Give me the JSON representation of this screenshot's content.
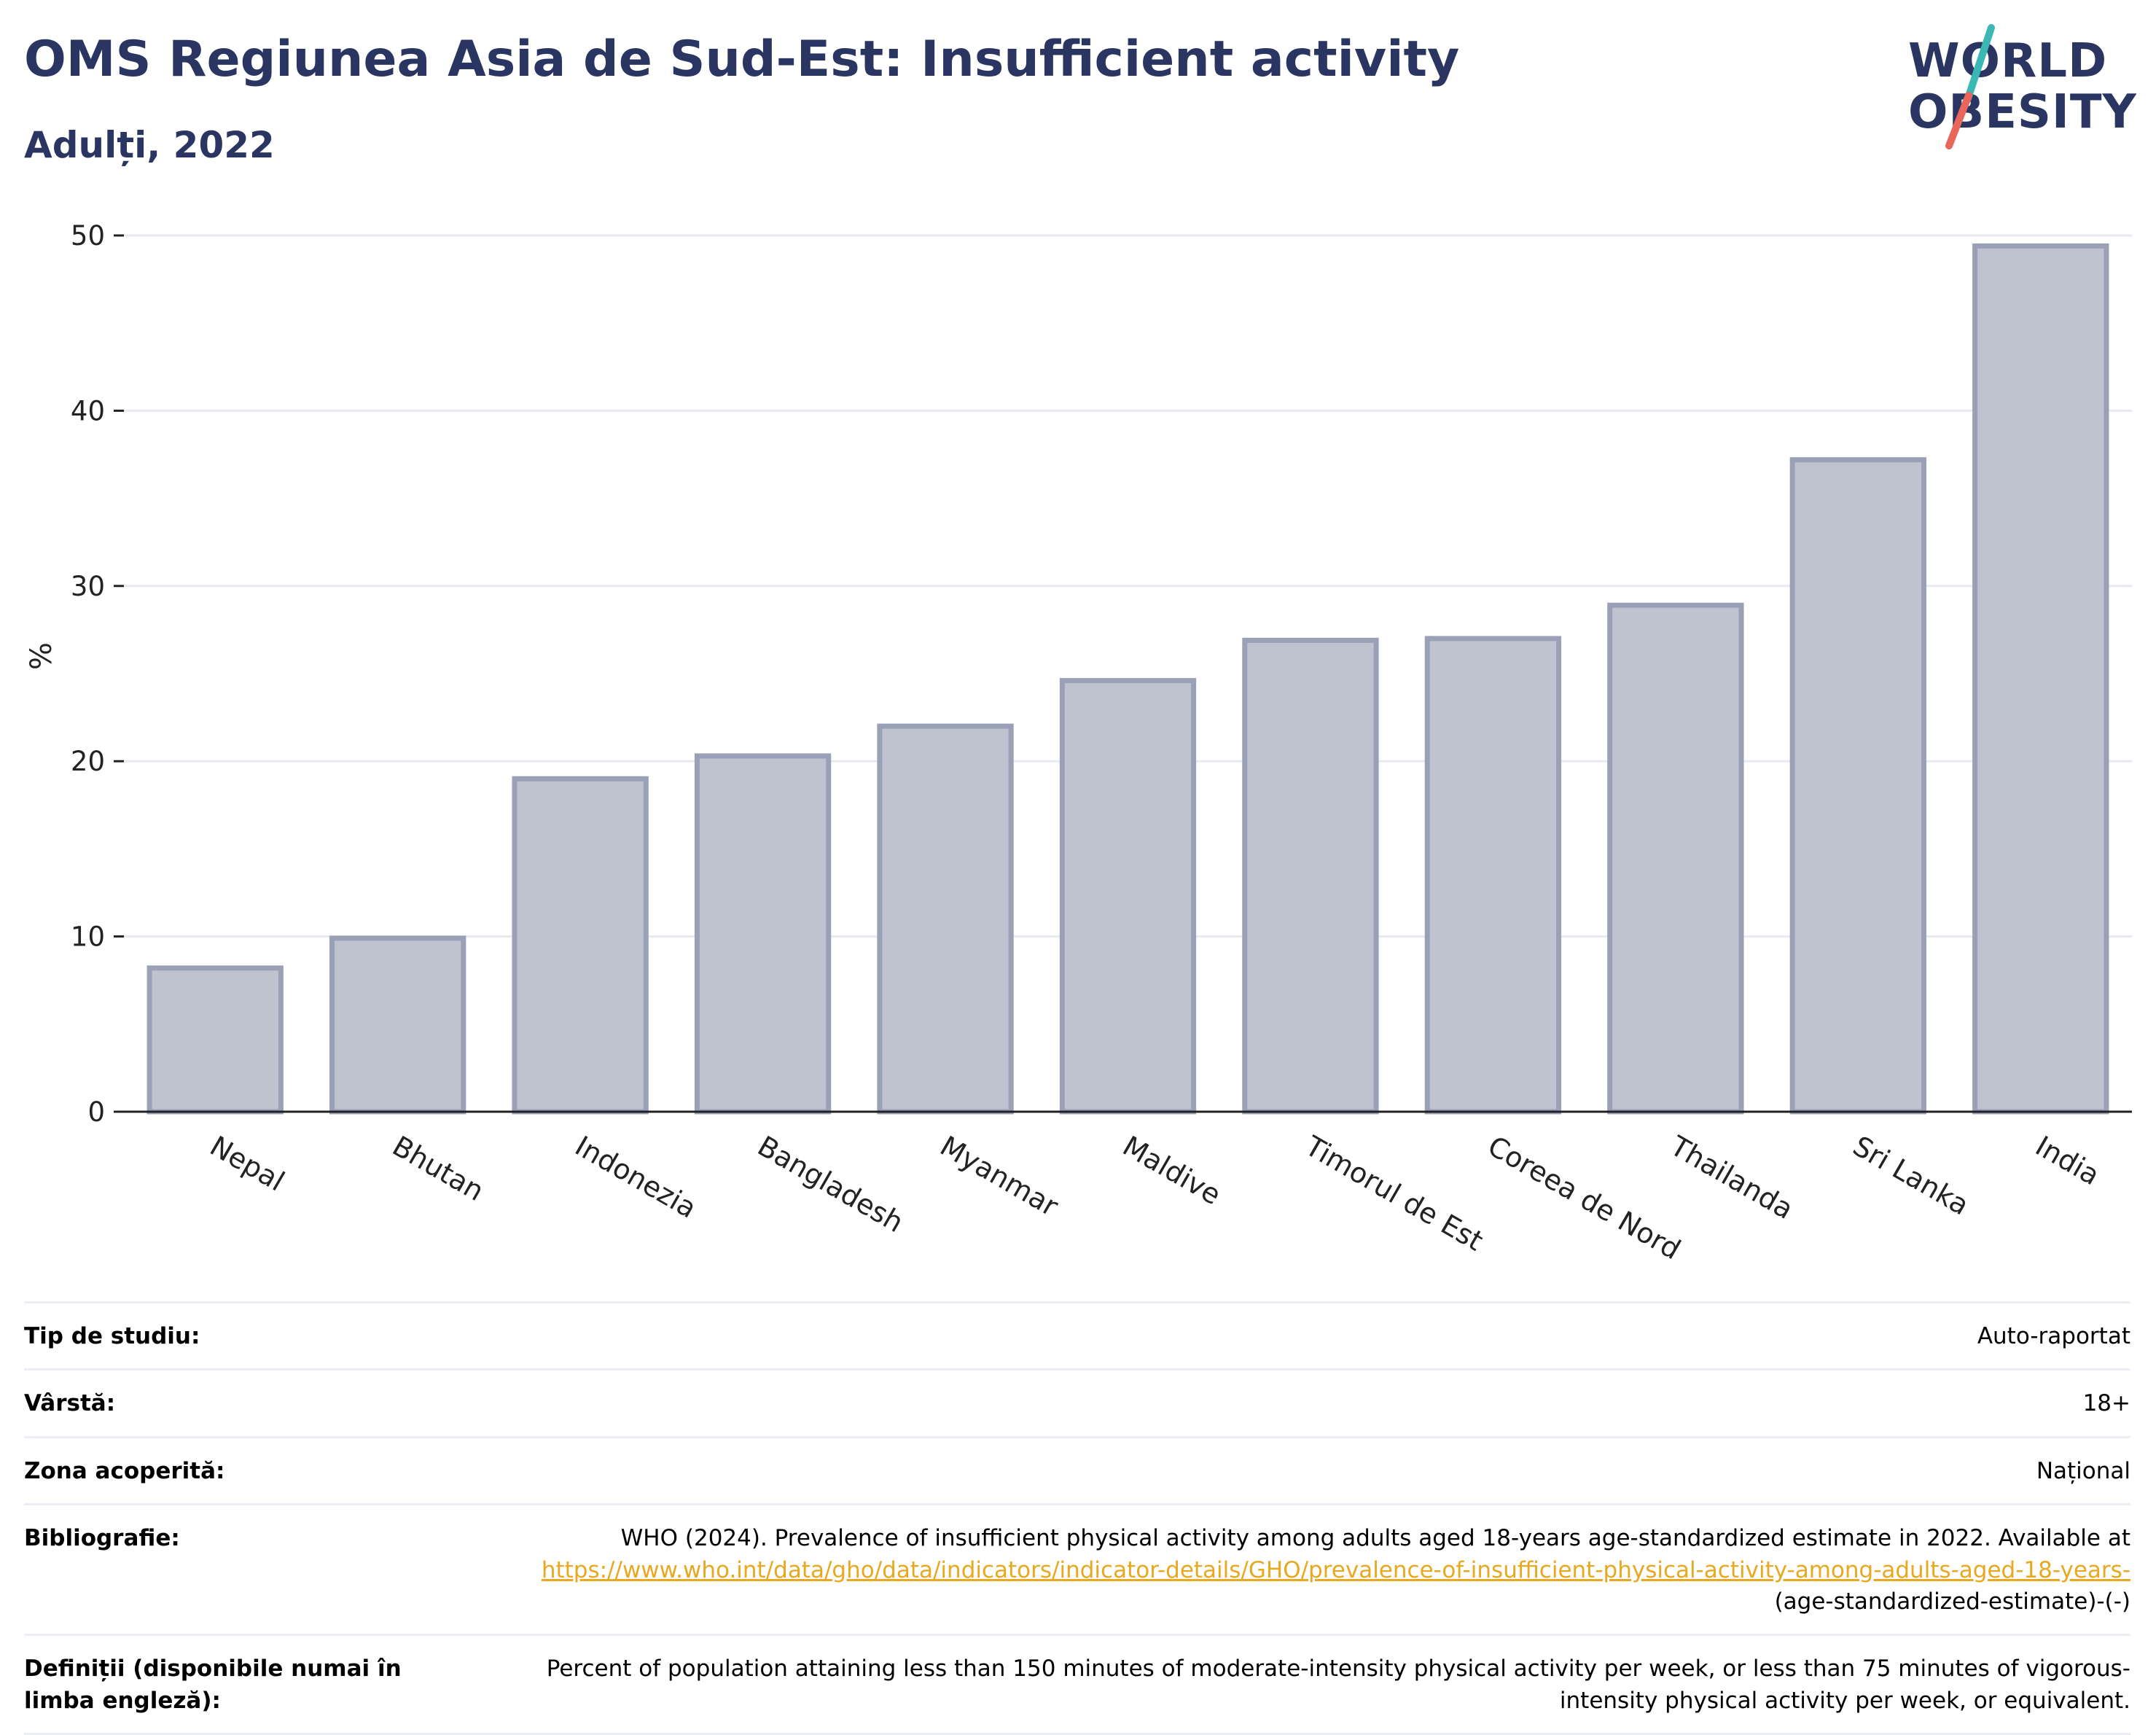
{
  "header": {
    "title": "OMS Regiunea Asia de Sud-Est: Insufficient activity",
    "subtitle": "Adulți, 2022"
  },
  "logo": {
    "line1": "WORLD",
    "line2": "OBESITY",
    "colors": {
      "text": "#2b3561",
      "slash_top": "#3bb8b3",
      "slash_bottom": "#e8675a"
    }
  },
  "chart_data": {
    "type": "bar",
    "categories": [
      "Nepal",
      "Bhutan",
      "Indonezia",
      "Bangladesh",
      "Myanmar",
      "Maldive",
      "Timorul de Est",
      "Coreea de Nord",
      "Thailanda",
      "Sri Lanka",
      "India"
    ],
    "values": [
      8.2,
      9.9,
      19.0,
      20.3,
      22.0,
      24.6,
      26.9,
      27.0,
      28.9,
      37.2,
      49.4
    ],
    "ylabel": "%",
    "xlabel": "",
    "ylim": [
      0,
      50
    ],
    "yticks": [
      0,
      10,
      20,
      30,
      40,
      50
    ],
    "grid": true,
    "legend": "none",
    "colors": {
      "bar_fill": "#bfc3d0",
      "bar_stroke": "#9aa0b6",
      "grid": "#e8eaf0",
      "axis": "#222222"
    }
  },
  "meta": {
    "rows": [
      {
        "key": "Tip de studiu:",
        "value": "Auto-raportat"
      },
      {
        "key": "Vârstă:",
        "value": "18+"
      },
      {
        "key": "Zona acoperită:",
        "value": "Național"
      }
    ],
    "bibliography": {
      "key": "Bibliografie:",
      "text_before": "WHO (2024). Prevalence of insufficient physical activity among adults aged 18-years age-standardized estimate in 2022. Available at",
      "link": "https://www.who.int/data/gho/data/indicators/indicator-details/GHO/prevalence-of-insufficient-physical-activity-among-adults-aged-18-years-",
      "text_after": "(age-standardized-estimate)-(-)"
    },
    "definition": {
      "key": "Definiții (disponibile numai în limba engleză):",
      "value": "Percent of population attaining less than 150 minutes of moderate-intensity physical activity per week, or less than 75 minutes of vigorous-intensity physical activity per week, or equivalent."
    }
  }
}
